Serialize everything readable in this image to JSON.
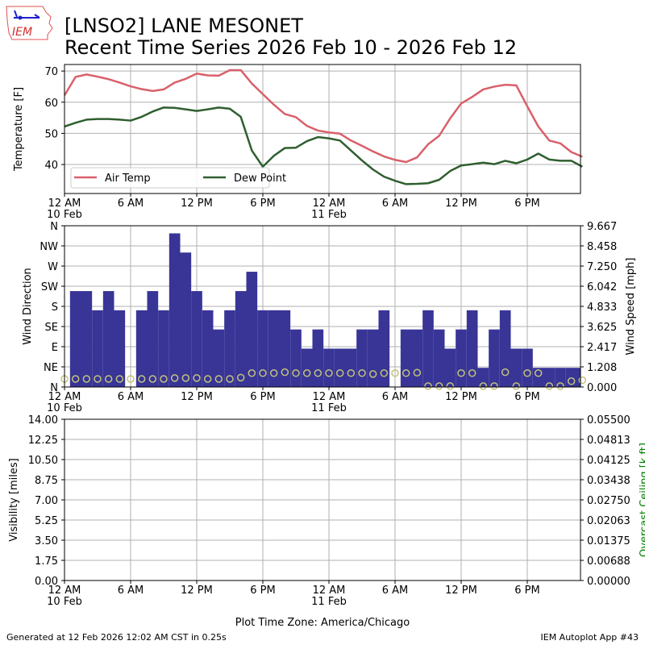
{
  "header": {
    "logo_text": "IEM",
    "title_line1": "[LNSO2] LANE MESONET",
    "title_line2": "Recent Time Series 2026 Feb 10 - 2026 Feb 12"
  },
  "footer": {
    "generated": "Generated at 12 Feb 2026 12:02 AM CST in 0.25s",
    "app": "IEM Autoplot App #43",
    "timezone": "Plot Time Zone: America/Chicago"
  },
  "colors": {
    "air": "#d9606a",
    "dew": "#2f5f30",
    "wind_bar": "#383597",
    "wind_dir": "#c4c27a",
    "ceiling_label": "#008000",
    "grid": "#b0b0b0"
  },
  "chart_data": [
    {
      "type": "line",
      "ylabel": "Temperature [F]",
      "ylim": [
        30.7,
        72.1
      ],
      "yticks": [
        "40",
        "50",
        "60",
        "70"
      ],
      "ytick_values": [
        40,
        50,
        60,
        70
      ],
      "xlim_hours": [
        0,
        46.83
      ],
      "xticks": [
        {
          "h": 0,
          "label": "12 AM",
          "sub": "10 Feb"
        },
        {
          "h": 6,
          "label": "6 AM",
          "sub": ""
        },
        {
          "h": 12,
          "label": "12 PM",
          "sub": ""
        },
        {
          "h": 18,
          "label": "6 PM",
          "sub": ""
        },
        {
          "h": 24,
          "label": "12 AM",
          "sub": "11 Feb"
        },
        {
          "h": 30,
          "label": "6 AM",
          "sub": ""
        },
        {
          "h": 36,
          "label": "12 PM",
          "sub": ""
        },
        {
          "h": 42,
          "label": "6 PM",
          "sub": ""
        }
      ],
      "legend": {
        "placement": "lower-left",
        "entries": [
          "Air Temp",
          "Dew Point"
        ]
      },
      "series": [
        {
          "name": "Air Temp",
          "values": [
            62.2,
            68.1,
            68.9,
            68.2,
            67.4,
            66.3,
            65.1,
            64.2,
            63.6,
            64.1,
            66.3,
            67.5,
            69.2,
            68.6,
            68.5,
            70.3,
            70.3,
            66.0,
            62.6,
            59.2,
            56.2,
            55.2,
            52.4,
            50.9,
            50.3,
            49.9,
            47.7,
            46.0,
            44.2,
            42.6,
            41.5,
            40.8,
            42.3,
            46.5,
            49.2,
            54.8,
            59.6,
            61.7,
            64.1,
            65.0,
            65.6,
            65.4,
            58.7,
            52.2,
            47.7,
            46.8,
            44.0,
            42.5
          ]
        },
        {
          "name": "Dew Point",
          "values": [
            52.2,
            53.4,
            54.4,
            54.6,
            54.6,
            54.4,
            54.1,
            55.3,
            57.0,
            58.3,
            58.2,
            57.7,
            57.2,
            57.7,
            58.3,
            57.9,
            55.3,
            44.5,
            39.3,
            42.8,
            45.3,
            45.4,
            47.5,
            48.8,
            48.4,
            47.7,
            44.5,
            41.3,
            38.4,
            36.1,
            34.8,
            33.7,
            33.8,
            34.0,
            35.1,
            37.9,
            39.7,
            40.1,
            40.6,
            40.1,
            41.2,
            40.4,
            41.6,
            43.5,
            41.6,
            41.2,
            41.2,
            39.3
          ]
        }
      ]
    },
    {
      "type": "bar",
      "ylabel": "Wind Direction",
      "y2label": "Wind Speed [mph]",
      "ylim": [
        0,
        360
      ],
      "yticks": [
        "N",
        "NE",
        "E",
        "SE",
        "S",
        "SW",
        "W",
        "NW",
        "N"
      ],
      "y2lim": [
        0,
        9.667
      ],
      "y2ticks": [
        "0.000",
        "1.208",
        "2.417",
        "3.625",
        "4.833",
        "6.042",
        "7.250",
        "8.458",
        "9.667"
      ],
      "series": [
        {
          "name": "Wind Speed",
          "values": [
            0,
            5.75,
            5.75,
            4.6,
            5.75,
            4.6,
            0,
            4.6,
            5.75,
            4.6,
            9.21,
            8.06,
            5.75,
            4.6,
            3.45,
            4.6,
            5.75,
            6.91,
            4.6,
            4.6,
            4.6,
            3.45,
            2.3,
            3.45,
            2.3,
            2.3,
            2.3,
            3.45,
            3.45,
            4.6,
            0,
            3.45,
            3.45,
            4.6,
            3.45,
            2.3,
            3.45,
            4.6,
            1.15,
            3.45,
            4.6,
            2.3,
            2.3,
            1.15,
            1.15,
            1.15,
            1.15,
            1.15
          ]
        },
        {
          "name": "Wind Direction",
          "values": [
            18,
            18,
            18,
            18,
            18,
            18,
            18,
            18,
            18,
            18,
            20,
            20,
            20,
            18,
            18,
            18,
            21,
            31,
            31,
            31,
            33,
            31,
            31,
            31,
            31,
            31,
            31,
            31,
            29,
            31,
            31,
            31,
            32,
            2,
            2,
            2,
            31,
            31,
            2,
            2,
            33,
            2,
            31,
            31,
            2,
            2,
            13,
            15
          ]
        }
      ]
    },
    {
      "type": "line",
      "ylabel": "Visibility [miles]",
      "y2label": "Overcast Ceiling [k ft]",
      "ylim": [
        0,
        14
      ],
      "yticks": [
        "0.00",
        "1.75",
        "3.50",
        "5.25",
        "7.00",
        "8.75",
        "10.50",
        "12.25",
        "14.00"
      ],
      "y2lim": [
        0,
        0.055
      ],
      "y2ticks": [
        "0.00000",
        "0.00688",
        "0.01375",
        "0.02063",
        "0.02750",
        "0.03438",
        "0.04125",
        "0.04813",
        "0.05500"
      ],
      "series": []
    }
  ]
}
